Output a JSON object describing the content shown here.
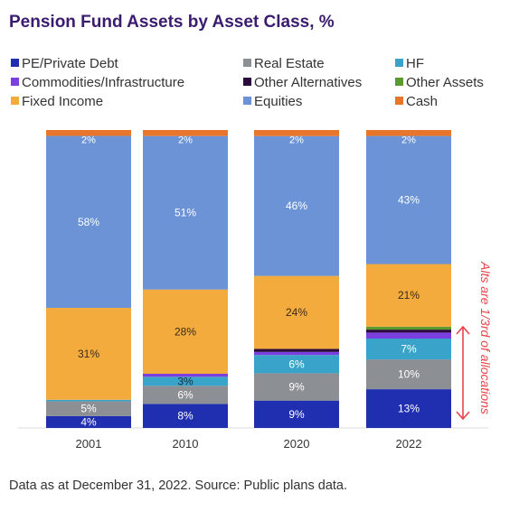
{
  "chart_data": {
    "type": "bar",
    "stacked": true,
    "title": "Pension Fund Assets by Asset Class, %",
    "categories": [
      "2001",
      "2010",
      "2020",
      "2022"
    ],
    "ylim": [
      0,
      100
    ],
    "grid": false,
    "legend_position": "top",
    "series": [
      {
        "name": "PE/Private Debt",
        "color": "#1f2fb0",
        "values": [
          4,
          8,
          9,
          13
        ],
        "labels": [
          "4%",
          "8%",
          "9%",
          "13%"
        ]
      },
      {
        "name": "Real Estate",
        "color": "#8c8f94",
        "values": [
          5,
          6,
          9,
          10
        ],
        "labels": [
          "5%",
          "6%",
          "9%",
          "10%"
        ]
      },
      {
        "name": "HF",
        "color": "#3aa3c9",
        "values": [
          0.5,
          3,
          6,
          7
        ],
        "labels": [
          "",
          "3%",
          "6%",
          "7%"
        ]
      },
      {
        "name": "Commodities/Infrastructure",
        "color": "#7b3fe0",
        "values": [
          0,
          1,
          1,
          2
        ],
        "labels": [
          "",
          "",
          "",
          ""
        ]
      },
      {
        "name": "Other Alternatives",
        "color": "#2b0a3d",
        "values": [
          0,
          0,
          1,
          1
        ],
        "labels": [
          "",
          "",
          "",
          ""
        ]
      },
      {
        "name": "Other Assets",
        "color": "#5a9a2e",
        "values": [
          0,
          0,
          0,
          1
        ],
        "labels": [
          "",
          "",
          "",
          ""
        ]
      },
      {
        "name": "Fixed Income",
        "color": "#f2ab3c",
        "values": [
          31,
          28,
          24,
          21
        ],
        "labels": [
          "31%",
          "28%",
          "24%",
          "21%"
        ]
      },
      {
        "name": "Equities",
        "color": "#6b93d6",
        "values": [
          58,
          51,
          46,
          43
        ],
        "labels": [
          "58%",
          "51%",
          "46%",
          "43%"
        ]
      },
      {
        "name": "Cash",
        "color": "#e8752c",
        "values": [
          2,
          2,
          2,
          2
        ],
        "labels": [
          "2%",
          "2%",
          "2%",
          "2%"
        ]
      }
    ],
    "annotation": "Alts are 1/3rd of allocations",
    "annotation_color": "#e8434a"
  },
  "legend_items": [
    "PE/Private Debt",
    "Real Estate",
    "HF",
    "Commodities/Infrastructure",
    "Other Alternatives",
    "Other Assets",
    "Fixed Income",
    "Equities",
    "Cash"
  ],
  "footnote": "Data as at December 31, 2022. Source: Public plans data."
}
